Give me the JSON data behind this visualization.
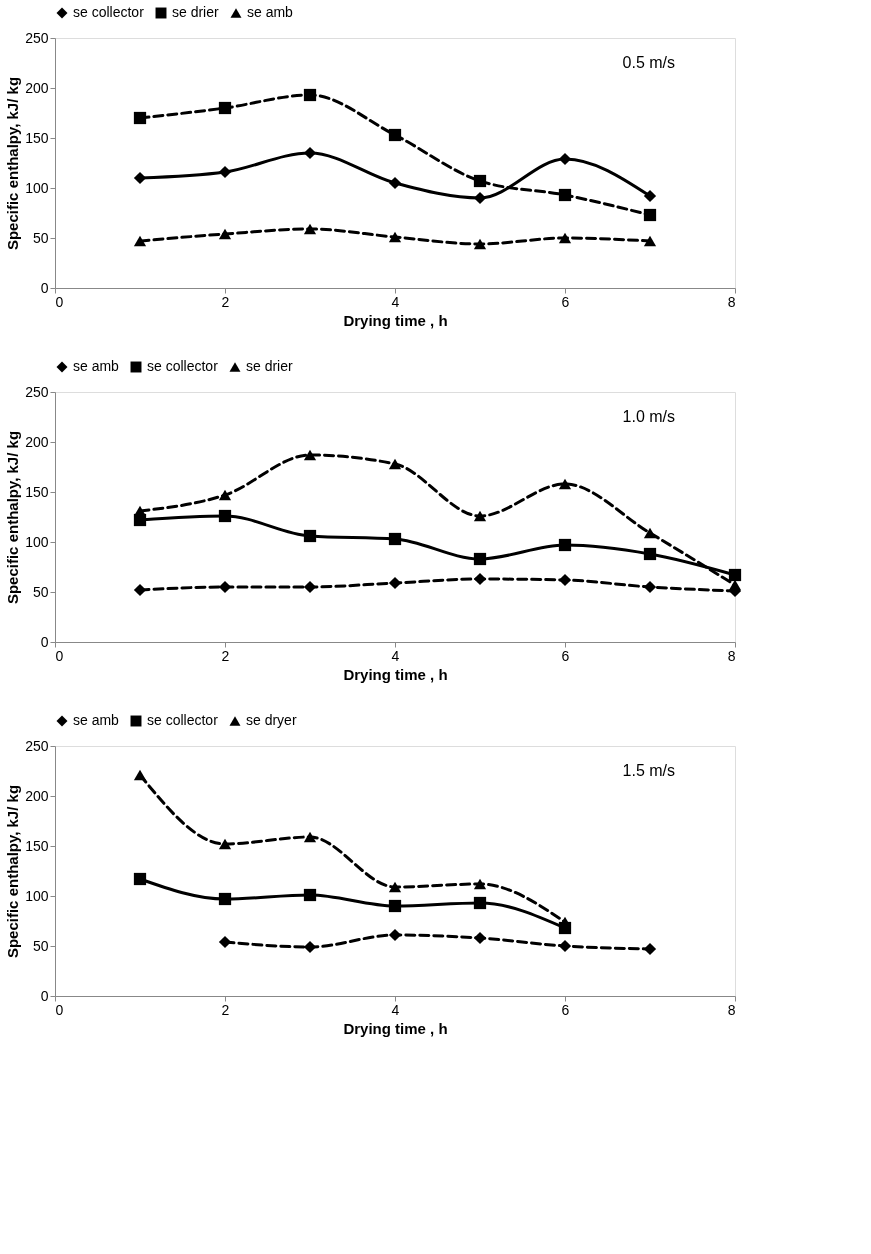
{
  "chart_data": [
    {
      "type": "line",
      "xlabel": "Drying time , h",
      "ylabel": "Specific enthalpy, kJ/ kg",
      "annotations": [
        "0.5 m/s"
      ],
      "xlim": [
        0,
        8
      ],
      "xticks": [
        0,
        2,
        4,
        6,
        8
      ],
      "ylim": [
        0,
        250
      ],
      "yticks": [
        0,
        50,
        100,
        150,
        200,
        250
      ],
      "grid": false,
      "legend": "top",
      "x": [
        1,
        2,
        3,
        4,
        5,
        6,
        7
      ],
      "series": [
        {
          "name": "se collector",
          "color": "#000000",
          "marker": "diamond",
          "line_style": "solid",
          "values": [
            110,
            116,
            135,
            105,
            90,
            129,
            92
          ]
        },
        {
          "name": "se drier",
          "color": "#000000",
          "marker": "square",
          "line_style": "dashed",
          "values": [
            170,
            180,
            193,
            153,
            107,
            93,
            73
          ]
        },
        {
          "name": "se amb",
          "color": "#000000",
          "marker": "triangle",
          "line_style": "dashed",
          "values": [
            47,
            54,
            59,
            51,
            44,
            50,
            47
          ]
        }
      ]
    },
    {
      "type": "line",
      "xlabel": "Drying time , h",
      "ylabel": "Specific enthalpy, kJ/ kg",
      "annotations": [
        "1.0 m/s"
      ],
      "xlim": [
        0,
        8
      ],
      "xticks": [
        0,
        2,
        4,
        6,
        8
      ],
      "ylim": [
        0,
        250
      ],
      "yticks": [
        0,
        50,
        100,
        150,
        200,
        250
      ],
      "grid": false,
      "legend": "top",
      "x": [
        1,
        2,
        3,
        4,
        5,
        6,
        7,
        8
      ],
      "series": [
        {
          "name": "se amb",
          "color": "#000000",
          "marker": "diamond",
          "line_style": "dashed",
          "values": [
            52,
            55,
            55,
            59,
            63,
            62,
            55,
            51
          ]
        },
        {
          "name": "se collector",
          "color": "#000000",
          "marker": "square",
          "line_style": "solid",
          "values": [
            122,
            126,
            106,
            103,
            83,
            97,
            88,
            67
          ]
        },
        {
          "name": "se drier",
          "color": "#000000",
          "marker": "triangle",
          "line_style": "dashed",
          "values": [
            131,
            147,
            187,
            178,
            126,
            158,
            109,
            57
          ]
        }
      ]
    },
    {
      "type": "line",
      "xlabel": "Drying time , h",
      "ylabel": "Specific enthalpy, kJ/ kg",
      "annotations": [
        "1.5 m/s"
      ],
      "xlim": [
        0,
        8
      ],
      "xticks": [
        0,
        2,
        4,
        6,
        8
      ],
      "ylim": [
        0,
        250
      ],
      "yticks": [
        0,
        50,
        100,
        150,
        200,
        250
      ],
      "grid": false,
      "legend": "top",
      "series": [
        {
          "name": "se amb",
          "color": "#000000",
          "marker": "diamond",
          "line_style": "dashed",
          "x": [
            2,
            3,
            4,
            5,
            6,
            7
          ],
          "values": [
            54,
            49,
            61,
            58,
            50,
            47
          ]
        },
        {
          "name": "se collector",
          "color": "#000000",
          "marker": "square",
          "line_style": "solid",
          "x": [
            1,
            2,
            3,
            4,
            5,
            6
          ],
          "values": [
            117,
            97,
            101,
            90,
            93,
            68
          ]
        },
        {
          "name": "se dryer",
          "color": "#000000",
          "marker": "triangle",
          "line_style": "dashed",
          "x": [
            1,
            2,
            3,
            4,
            5,
            6
          ],
          "values": [
            221,
            152,
            159,
            109,
            112,
            74
          ]
        }
      ]
    }
  ]
}
